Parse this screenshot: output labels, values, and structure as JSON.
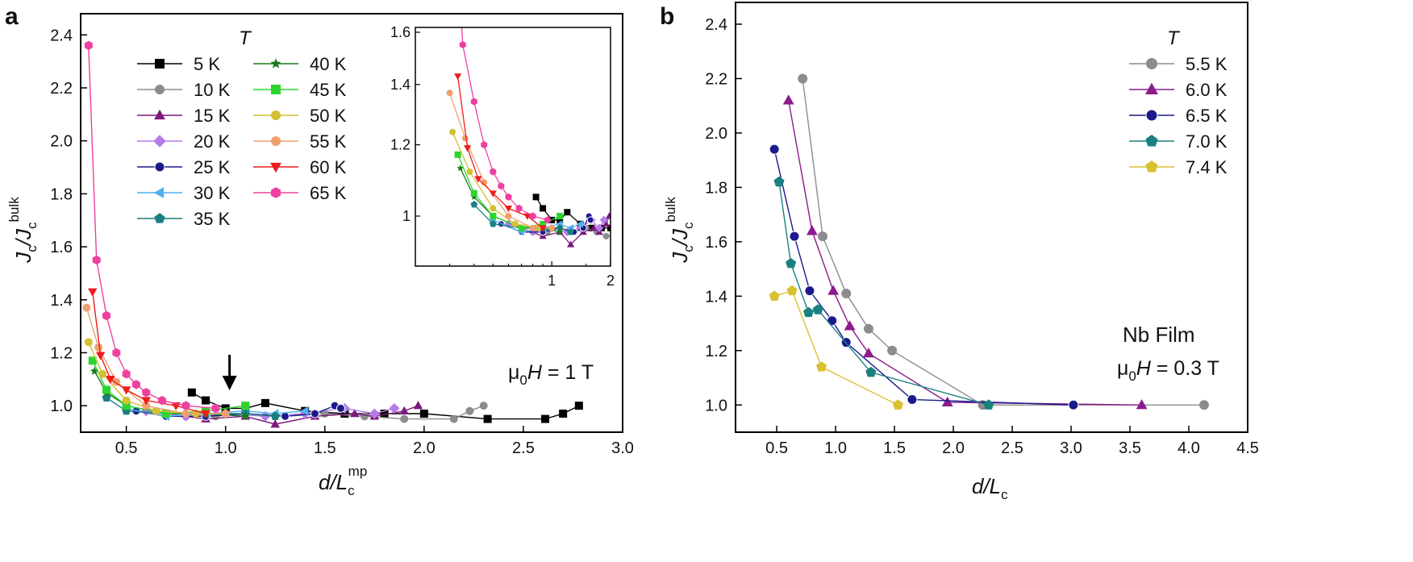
{
  "chart_data": [
    {
      "panel_label": "a",
      "type": "line",
      "xlabel_main": "d/L",
      "xlabel_sub": "c",
      "xlabel_sup": "mp",
      "ylabel_main": "J",
      "ylabel_mid": "/J",
      "ylabel_sub": "c",
      "ylabel_sup": "bulk",
      "xlim": [
        0.27,
        3.0
      ],
      "ylim": [
        0.9,
        2.48
      ],
      "xticks": [
        "0.5",
        "1.0",
        "1.5",
        "2.0",
        "2.5",
        "3.0"
      ],
      "yticks": [
        "1.0",
        "1.2",
        "1.4",
        "1.6",
        "1.8",
        "2.0",
        "2.2",
        "2.4"
      ],
      "legend_title": "T",
      "annotation_pre": "μ",
      "annotation_sub": "0",
      "annotation_h": "H",
      "annotation_post": " = 1 T",
      "arrow_x": 1.02,
      "series": [
        {
          "name": "5 K",
          "color": "#000000",
          "marker": "square",
          "points": [
            [
              0.83,
              1.05
            ],
            [
              0.9,
              1.02
            ],
            [
              1.0,
              0.99
            ],
            [
              1.1,
              0.99
            ],
            [
              1.2,
              1.01
            ],
            [
              1.4,
              0.98
            ],
            [
              1.6,
              0.97
            ],
            [
              1.8,
              0.97
            ],
            [
              2.0,
              0.97
            ],
            [
              2.32,
              0.95
            ],
            [
              2.61,
              0.95
            ],
            [
              2.7,
              0.97
            ],
            [
              2.78,
              1.0
            ]
          ]
        },
        {
          "name": "10 K",
          "color": "#8c8c8c",
          "marker": "circle",
          "points": [
            [
              0.8,
              0.96
            ],
            [
              0.95,
              0.96
            ],
            [
              1.1,
              0.97
            ],
            [
              1.3,
              0.96
            ],
            [
              1.5,
              0.97
            ],
            [
              1.7,
              0.96
            ],
            [
              1.9,
              0.95
            ],
            [
              2.15,
              0.95
            ],
            [
              2.23,
              0.98
            ],
            [
              2.3,
              1.0
            ]
          ]
        },
        {
          "name": "15 K",
          "color": "#7b1a7b",
          "marker": "triangle",
          "points": [
            [
              0.7,
              0.97
            ],
            [
              0.9,
              0.95
            ],
            [
              1.1,
              0.96
            ],
            [
              1.25,
              0.93
            ],
            [
              1.45,
              0.96
            ],
            [
              1.65,
              0.97
            ],
            [
              1.75,
              0.96
            ],
            [
              1.9,
              0.98
            ],
            [
              1.97,
              1.0
            ]
          ]
        },
        {
          "name": "20 K",
          "color": "#b57ce8",
          "marker": "diamond",
          "points": [
            [
              0.6,
              0.98
            ],
            [
              0.8,
              0.96
            ],
            [
              1.0,
              0.97
            ],
            [
              1.2,
              0.96
            ],
            [
              1.4,
              0.97
            ],
            [
              1.6,
              0.99
            ],
            [
              1.75,
              0.97
            ],
            [
              1.85,
              0.99
            ]
          ]
        },
        {
          "name": "25 K",
          "color": "#1a1a8c",
          "marker": "circle",
          "points": [
            [
              0.55,
              0.98
            ],
            [
              0.7,
              0.96
            ],
            [
              0.9,
              0.96
            ],
            [
              1.1,
              0.97
            ],
            [
              1.3,
              0.96
            ],
            [
              1.45,
              0.97
            ],
            [
              1.55,
              1.0
            ],
            [
              1.58,
              0.99
            ]
          ]
        },
        {
          "name": "30 K",
          "color": "#4fb0f0",
          "marker": "tri-left",
          "points": [
            [
              0.5,
              0.99
            ],
            [
              0.7,
              0.96
            ],
            [
              0.9,
              0.97
            ],
            [
              1.1,
              0.98
            ],
            [
              1.25,
              0.97
            ],
            [
              1.4,
              0.98
            ]
          ]
        },
        {
          "name": "35 K",
          "color": "#1a7f80",
          "marker": "pentagon",
          "points": [
            [
              0.4,
              1.03
            ],
            [
              0.5,
              0.98
            ],
            [
              0.7,
              0.97
            ],
            [
              0.9,
              0.97
            ],
            [
              1.1,
              0.97
            ],
            [
              1.25,
              0.96
            ]
          ]
        },
        {
          "name": "40 K",
          "color": "#1a7a1a",
          "marker": "star",
          "points": [
            [
              0.34,
              1.13
            ],
            [
              0.4,
              1.05
            ],
            [
              0.5,
              1.0
            ],
            [
              0.7,
              0.97
            ],
            [
              0.9,
              0.97
            ],
            [
              1.1,
              0.96
            ]
          ]
        },
        {
          "name": "45 K",
          "color": "#2ed42e",
          "marker": "square",
          "points": [
            [
              0.33,
              1.17
            ],
            [
              0.4,
              1.06
            ],
            [
              0.5,
              1.0
            ],
            [
              0.7,
              0.97
            ],
            [
              0.9,
              0.98
            ],
            [
              1.1,
              1.0
            ]
          ]
        },
        {
          "name": "50 K",
          "color": "#d4c030",
          "marker": "circle",
          "points": [
            [
              0.31,
              1.24
            ],
            [
              0.38,
              1.12
            ],
            [
              0.5,
              1.02
            ],
            [
              0.65,
              0.98
            ],
            [
              0.85,
              0.97
            ],
            [
              1.0,
              0.97
            ]
          ]
        },
        {
          "name": "55 K",
          "color": "#f0a070",
          "marker": "circle",
          "points": [
            [
              0.3,
              1.37
            ],
            [
              0.36,
              1.22
            ],
            [
              0.45,
              1.09
            ],
            [
              0.6,
              1.0
            ],
            [
              0.8,
              0.97
            ],
            [
              1.0,
              0.97
            ]
          ]
        },
        {
          "name": "60 K",
          "color": "#ee1c1c",
          "marker": "tri-down",
          "points": [
            [
              0.33,
              1.43
            ],
            [
              0.37,
              1.19
            ],
            [
              0.42,
              1.1
            ],
            [
              0.5,
              1.06
            ],
            [
              0.6,
              1.02
            ],
            [
              0.75,
              1.0
            ],
            [
              0.9,
              0.97
            ]
          ]
        },
        {
          "name": "65 K",
          "color": "#ee40a0",
          "marker": "hexagon",
          "points": [
            [
              0.31,
              2.36
            ],
            [
              0.35,
              1.55
            ],
            [
              0.4,
              1.34
            ],
            [
              0.45,
              1.2
            ],
            [
              0.5,
              1.12
            ],
            [
              0.55,
              1.08
            ],
            [
              0.6,
              1.05
            ],
            [
              0.68,
              1.02
            ],
            [
              0.8,
              1.0
            ],
            [
              0.95,
              0.99
            ]
          ]
        }
      ],
      "inset": {
        "xlim_log": [
          0.2,
          2.0
        ],
        "ylim_log": [
          0.88,
          1.62
        ],
        "xticks": [
          "1",
          "2"
        ],
        "yticks": [
          "1",
          "1.2",
          "1.4",
          "1.6"
        ]
      }
    },
    {
      "panel_label": "b",
      "type": "line",
      "xlabel_main": "d/L",
      "xlabel_sub": "c",
      "ylabel_main": "J",
      "ylabel_mid": "/J",
      "ylabel_sub": "c",
      "ylabel_sup": "bulk",
      "xlim": [
        0.15,
        4.5
      ],
      "ylim": [
        0.9,
        2.48
      ],
      "xticks": [
        "0.5",
        "1.0",
        "1.5",
        "2.0",
        "2.5",
        "3.0",
        "3.5",
        "4.0",
        "4.5"
      ],
      "yticks": [
        "1.0",
        "1.2",
        "1.4",
        "1.6",
        "1.8",
        "2.0",
        "2.2",
        "2.4"
      ],
      "legend_title": "T",
      "annotation_line1": "Nb Film",
      "annotation_pre": "μ",
      "annotation_sub": "0",
      "annotation_h": "H",
      "annotation_post": " = 0.3 T",
      "series": [
        {
          "name": "5.5 K",
          "color": "#8c8c8c",
          "marker": "circle",
          "points": [
            [
              0.72,
              2.2
            ],
            [
              0.89,
              1.62
            ],
            [
              1.09,
              1.41
            ],
            [
              1.28,
              1.28
            ],
            [
              1.48,
              1.2
            ],
            [
              2.25,
              1.0
            ],
            [
              4.13,
              1.0
            ]
          ]
        },
        {
          "name": "6.0 K",
          "color": "#8b1a8b",
          "marker": "triangle",
          "points": [
            [
              0.6,
              2.12
            ],
            [
              0.8,
              1.64
            ],
            [
              0.98,
              1.42
            ],
            [
              1.12,
              1.29
            ],
            [
              1.28,
              1.19
            ],
            [
              1.95,
              1.01
            ],
            [
              3.6,
              1.0
            ]
          ]
        },
        {
          "name": "6.5 K",
          "color": "#1a1a8c",
          "marker": "circle",
          "points": [
            [
              0.48,
              1.94
            ],
            [
              0.65,
              1.62
            ],
            [
              0.78,
              1.42
            ],
            [
              0.97,
              1.31
            ],
            [
              1.09,
              1.23
            ],
            [
              1.65,
              1.02
            ],
            [
              3.02,
              1.0
            ]
          ]
        },
        {
          "name": "7.0 K",
          "color": "#1a8080",
          "marker": "pentagon",
          "points": [
            [
              0.52,
              1.82
            ],
            [
              0.62,
              1.52
            ],
            [
              0.77,
              1.34
            ],
            [
              0.85,
              1.35
            ],
            [
              1.3,
              1.12
            ],
            [
              2.3,
              1.0
            ]
          ]
        },
        {
          "name": "7.4 K",
          "color": "#d8c030",
          "marker": "pentagon",
          "points": [
            [
              0.48,
              1.4
            ],
            [
              0.63,
              1.42
            ],
            [
              0.88,
              1.14
            ],
            [
              1.53,
              1.0
            ]
          ]
        }
      ]
    }
  ]
}
